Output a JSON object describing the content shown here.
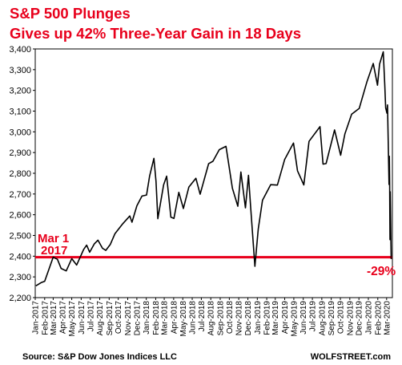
{
  "chart_data": {
    "type": "line",
    "title": "S&P 500 Plunges",
    "subtitle": "Gives up 42% Three-Year Gain in 18 Days",
    "xlabel": "",
    "ylabel": "",
    "ylim": [
      2200,
      3400
    ],
    "yticks": [
      2200,
      2300,
      2400,
      2500,
      2600,
      2700,
      2800,
      2900,
      3000,
      3100,
      3200,
      3300,
      3400
    ],
    "ytick_labels": [
      "2,200",
      "2,300",
      "2,400",
      "2,500",
      "2,600",
      "2,700",
      "2,800",
      "2,900",
      "3,000",
      "3,100",
      "3,200",
      "3,300",
      "3,400"
    ],
    "grid": false,
    "xtick_labels": [
      "Jan-2017",
      "Feb-2017",
      "Mar-2017",
      "Apr-2017",
      "May-2017",
      "Jun-2017",
      "Jul-2017",
      "Aug-2017",
      "Sep-2017",
      "Oct-2017",
      "Nov-2017",
      "Dec-2017",
      "Jan-2018",
      "Feb-2018",
      "Mar-2018",
      "Apr-2018",
      "May-2018",
      "Jun-2018",
      "Jul-2018",
      "Aug-2018",
      "Sep-2018",
      "Oct-2018",
      "Nov-2018",
      "Dec-2018",
      "Jan-2019",
      "Feb-2019",
      "Mar-2019",
      "Apr-2019",
      "May-2019",
      "Jun-2019",
      "Jul-2019",
      "Aug-2019",
      "Sep-2019",
      "Oct-2019",
      "Nov-2019",
      "Dec-2019",
      "Jan-2020",
      "Feb-2020",
      "Mar-2020"
    ],
    "series": [
      {
        "color": "#000000",
        "x": [
          "2017-01-03",
          "2017-01-20",
          "2017-02-01",
          "2017-02-15",
          "2017-03-01",
          "2017-03-15",
          "2017-03-27",
          "2017-04-13",
          "2017-05-01",
          "2017-05-17",
          "2017-06-09",
          "2017-06-19",
          "2017-06-29",
          "2017-07-14",
          "2017-07-26",
          "2017-08-10",
          "2017-08-21",
          "2017-09-05",
          "2017-09-20",
          "2017-10-16",
          "2017-11-08",
          "2017-11-15",
          "2017-12-01",
          "2017-12-18",
          "2018-01-02",
          "2018-01-12",
          "2018-01-26",
          "2018-02-02",
          "2018-02-08",
          "2018-02-27",
          "2018-03-09",
          "2018-03-23",
          "2018-04-02",
          "2018-04-18",
          "2018-05-03",
          "2018-05-21",
          "2018-06-13",
          "2018-06-27",
          "2018-07-25",
          "2018-08-08",
          "2018-08-29",
          "2018-09-20",
          "2018-10-11",
          "2018-10-29",
          "2018-11-08",
          "2018-11-23",
          "2018-12-03",
          "2018-12-10",
          "2018-12-24",
          "2019-01-04",
          "2019-01-18",
          "2019-02-14",
          "2019-03-08",
          "2019-04-01",
          "2019-04-30",
          "2019-05-13",
          "2019-06-03",
          "2019-06-20",
          "2019-07-26",
          "2019-08-05",
          "2019-08-15",
          "2019-09-12",
          "2019-10-02",
          "2019-10-16",
          "2019-11-07",
          "2019-12-02",
          "2019-12-27",
          "2020-01-17",
          "2020-01-31",
          "2020-02-07",
          "2020-02-19",
          "2020-02-24",
          "2020-02-27",
          "2020-03-02",
          "2020-03-04",
          "2020-03-06",
          "2020-03-09",
          "2020-03-10",
          "2020-03-11",
          "2020-03-12",
          "2020-03-13",
          "2020-03-16"
        ],
        "y": [
          2257,
          2272,
          2279,
          2337,
          2395,
          2385,
          2341,
          2329,
          2388,
          2357,
          2432,
          2453,
          2419,
          2459,
          2477,
          2438,
          2428,
          2457,
          2508,
          2557,
          2594,
          2564,
          2643,
          2690,
          2695,
          2786,
          2872,
          2762,
          2581,
          2744,
          2786,
          2588,
          2582,
          2708,
          2630,
          2733,
          2776,
          2699,
          2846,
          2858,
          2914,
          2930,
          2728,
          2641,
          2806,
          2633,
          2790,
          2637,
          2351,
          2531,
          2670,
          2745,
          2743,
          2867,
          2946,
          2812,
          2744,
          2954,
          3025,
          2844,
          2847,
          3009,
          2887,
          2990,
          3085,
          3113,
          3240,
          3330,
          3225,
          3327,
          3386,
          3225,
          3116,
          3090,
          3130,
          2972,
          2746,
          2882,
          2741,
          2480,
          2711,
          2386
        ]
      }
    ],
    "annotations": [
      {
        "text_line1": "Mar 1",
        "text_line2": "2017",
        "reference_value": 2395
      },
      {
        "text": "-29%"
      }
    ],
    "source": "Source: S&P Dow Jones Indices LLC",
    "watermark": "WOLFSTREET.com"
  }
}
